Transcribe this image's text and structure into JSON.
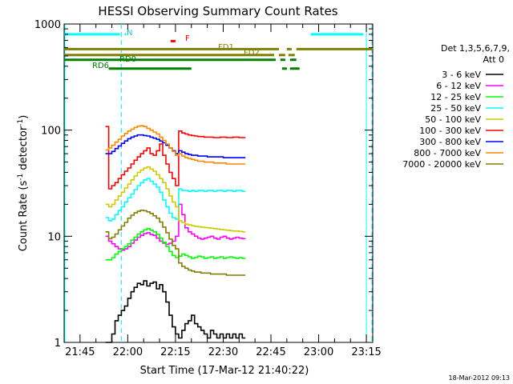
{
  "chart_data": {
    "type": "line",
    "title": "HESSI Observing Summary Count Rates",
    "xlabel": "Start Time (17-Mar-12 21:40:22)",
    "ylabel": "Count Rate (s-1 detector-1)",
    "ylabel_parts": {
      "a": "Count Rate (s",
      "sup1": "-1",
      "b": " detector",
      "sup2": "-1",
      "c": ")"
    },
    "yscale": "log",
    "ylim": [
      1,
      1000
    ],
    "xlim_min": [
      0,
      97
    ],
    "x_tick_values_min": [
      5,
      20,
      35,
      50,
      65,
      80,
      95
    ],
    "x_tick_labels": [
      "21:45",
      "22:00",
      "22:15",
      "22:30",
      "22:45",
      "23:00",
      "23:15"
    ],
    "y_tick_values": [
      1,
      10,
      100,
      1000
    ],
    "y_tick_labels": [
      "1",
      "10",
      "100",
      "1000"
    ],
    "timestamp": "18-Mar-2012 09:13",
    "legend": {
      "header1": "Det 1,3,5,6,7,9,",
      "header2": "Att 0",
      "entries": [
        {
          "label": "3 - 6 keV",
          "color": "#000000"
        },
        {
          "label": "6 - 12 keV",
          "color": "#ff00ff"
        },
        {
          "label": "12 - 25 keV",
          "color": "#00ff00"
        },
        {
          "label": "25 - 50 keV",
          "color": "#00ffff"
        },
        {
          "label": "50 - 100 keV",
          "color": "#cccc00"
        },
        {
          "label": "100 - 300 keV",
          "color": "#ff0000"
        },
        {
          "label": "300 - 800 keV",
          "color": "#0000ff"
        },
        {
          "label": "800 - 7000 keV",
          "color": "#ff8800"
        },
        {
          "label": "7000 - 20000 keV",
          "color": "#808000"
        }
      ]
    },
    "night_boundaries_min": [
      0,
      95
    ],
    "saa_boundaries_min": [
      18,
      97
    ],
    "bar_labels": {
      "N": "N",
      "F": "F",
      "FD1": "FD1",
      "FD2": "FD2",
      "RD0": "RD0",
      "RD6": "RD6"
    },
    "status_bars": [
      {
        "name": "N",
        "color": "#00ffff",
        "y": 800,
        "segments": [
          [
            0,
            17.5
          ],
          [
            19,
            19.5
          ],
          [
            77.5,
            94
          ]
        ]
      },
      {
        "name": "F",
        "color": "#ff0000",
        "y": 690,
        "segments": [
          [
            33.5,
            35
          ]
        ]
      },
      {
        "name": "FD1",
        "color": "#808000",
        "y": 580,
        "segments": [
          [
            0,
            67.5
          ],
          [
            70,
            71.5
          ],
          [
            73,
            97
          ]
        ]
      },
      {
        "name": "FD2",
        "color": "#808000",
        "y": 510,
        "segments": [
          [
            0,
            66
          ],
          [
            67.5,
            69.5
          ],
          [
            70.5,
            72.5
          ]
        ]
      },
      {
        "name": "RD0",
        "color": "#008000",
        "y": 460,
        "segments": [
          [
            0,
            66.5
          ],
          [
            68,
            69.5
          ],
          [
            71,
            73
          ]
        ]
      },
      {
        "name": "RD6",
        "color": "#008000",
        "y": 380,
        "segments": [
          [
            14,
            40
          ],
          [
            68.5,
            70
          ],
          [
            71,
            74
          ]
        ]
      }
    ],
    "series": [
      {
        "name": "3 - 6 keV",
        "color": "#000000",
        "x": [
          13,
          14,
          15,
          16,
          17,
          18,
          19,
          20,
          21,
          22,
          23,
          24,
          25,
          26,
          27,
          28,
          29,
          30,
          31,
          32,
          33,
          34,
          35,
          36,
          37,
          38,
          39,
          40,
          41,
          42,
          43,
          44,
          45,
          46,
          47,
          48,
          49,
          50,
          51,
          52,
          53,
          54,
          55,
          56
        ],
        "y": [
          1,
          1,
          1.2,
          1.6,
          1.8,
          2.0,
          2.2,
          2.6,
          3.0,
          3.3,
          3.6,
          3.5,
          3.8,
          3.4,
          3.6,
          3.7,
          3.2,
          3.5,
          3.0,
          2.4,
          1.8,
          1.4,
          1.2,
          1.1,
          1.3,
          1.5,
          1.6,
          1.8,
          1.5,
          1.4,
          1.3,
          1.2,
          1.1,
          1.3,
          1.2,
          1.1,
          1.2,
          1.1,
          1.2,
          1.1,
          1.2,
          1.1,
          1.2,
          1.1
        ]
      },
      {
        "name": "6 - 12 keV",
        "color": "#ff00ff",
        "x": [
          13,
          14,
          15,
          16,
          17,
          18,
          19,
          20,
          21,
          22,
          23,
          24,
          25,
          26,
          27,
          28,
          29,
          30,
          31,
          32,
          33,
          34,
          35,
          36,
          37,
          38,
          39,
          40,
          41,
          42,
          43,
          44,
          45,
          46,
          47,
          48,
          49,
          50,
          51,
          52,
          53,
          54,
          55,
          56
        ],
        "y": [
          10,
          9,
          8.5,
          8.0,
          7.6,
          7.4,
          7.6,
          8.0,
          8.6,
          9.2,
          9.8,
          10.2,
          10.6,
          10.8,
          10.4,
          10.2,
          9.6,
          9.0,
          8.6,
          8.4,
          8.6,
          9,
          10,
          20,
          16,
          12,
          11,
          10.5,
          10,
          9.6,
          9.4,
          9.6,
          9.8,
          10,
          9.6,
          9.4,
          9.8,
          10,
          9.6,
          9.4,
          9.6,
          9.8,
          9.6,
          9.5
        ]
      },
      {
        "name": "12 - 25 keV",
        "color": "#00ff00",
        "x": [
          13,
          14,
          15,
          16,
          17,
          18,
          19,
          20,
          21,
          22,
          23,
          24,
          25,
          26,
          27,
          28,
          29,
          30,
          31,
          32,
          33,
          34,
          35,
          36,
          37,
          38,
          39,
          40,
          41,
          42,
          43,
          44,
          45,
          46,
          47,
          48,
          49,
          50,
          51,
          52,
          53,
          54,
          55,
          56
        ],
        "y": [
          6.0,
          6.0,
          6.3,
          6.8,
          7.2,
          7.6,
          8.0,
          8.5,
          9.2,
          9.8,
          10.5,
          11.0,
          11.5,
          11.8,
          11.4,
          11.0,
          10.4,
          9.6,
          8.8,
          8.0,
          7.2,
          6.6,
          6.3,
          6.5,
          6.8,
          6.6,
          6.4,
          6.2,
          6.3,
          6.5,
          6.4,
          6.2,
          6.3,
          6.4,
          6.2,
          6.3,
          6.4,
          6.2,
          6.3,
          6.4,
          6.3,
          6.2,
          6.3,
          6.2
        ]
      },
      {
        "name": "25 - 50 keV",
        "color": "#00ffff",
        "x": [
          13,
          14,
          15,
          16,
          17,
          18,
          19,
          20,
          21,
          22,
          23,
          24,
          25,
          26,
          27,
          28,
          29,
          30,
          31,
          32,
          33,
          34,
          35,
          36,
          37,
          38,
          39,
          40,
          41,
          42,
          43,
          44,
          45,
          46,
          47,
          48,
          49,
          50,
          51,
          52,
          53,
          54,
          55,
          56
        ],
        "y": [
          15,
          14,
          14.5,
          16,
          17.5,
          19,
          21,
          23,
          25,
          27.5,
          30,
          32,
          34,
          35,
          33,
          31,
          29,
          26,
          22,
          19,
          16.5,
          15,
          14.5,
          28,
          27,
          27,
          26.5,
          27,
          26.5,
          27,
          27,
          26.5,
          27,
          27,
          26.5,
          27,
          27,
          26.5,
          27,
          27,
          26.5,
          27,
          27,
          26.5
        ]
      },
      {
        "name": "50 - 100 keV",
        "color": "#cccc00",
        "x": [
          13,
          14,
          15,
          16,
          17,
          18,
          19,
          20,
          21,
          22,
          23,
          24,
          25,
          26,
          27,
          28,
          29,
          30,
          31,
          32,
          33,
          34,
          35,
          36,
          37,
          38,
          39,
          40,
          41,
          42,
          43,
          44,
          45,
          46,
          47,
          48,
          49,
          50,
          51,
          52,
          53,
          54,
          55,
          56
        ],
        "y": [
          20,
          19,
          20,
          22,
          24,
          26,
          28.5,
          31,
          34,
          37,
          40,
          42,
          44,
          45,
          43,
          41,
          38,
          35,
          32,
          28,
          24,
          21,
          19,
          14,
          13.5,
          13,
          12.8,
          12.6,
          12.4,
          12.3,
          12.2,
          12.1,
          12.0,
          11.9,
          11.8,
          11.7,
          11.6,
          11.5,
          11.4,
          11.3,
          11.2,
          11.2,
          11.1,
          11.0
        ]
      },
      {
        "name": "100 - 300 keV",
        "color": "#ff0000",
        "x": [
          13,
          14,
          15,
          16,
          17,
          18,
          19,
          20,
          21,
          22,
          23,
          24,
          25,
          26,
          27,
          28,
          29,
          30,
          31,
          32,
          33,
          34,
          35,
          36,
          37,
          38,
          39,
          40,
          41,
          42,
          43,
          44,
          45,
          46,
          47,
          48,
          49,
          50,
          51,
          52,
          53,
          54,
          55,
          56
        ],
        "y": [
          108,
          28,
          30,
          32,
          35,
          38,
          41,
          44,
          48,
          52,
          56,
          60,
          64,
          68,
          60,
          58,
          64,
          74,
          58,
          48,
          40,
          35,
          30,
          98,
          94,
          92,
          90,
          89,
          88,
          87,
          87,
          86,
          86,
          86,
          85,
          85,
          86,
          86,
          85,
          85,
          86,
          86,
          85,
          85
        ]
      },
      {
        "name": "300 - 800 keV",
        "color": "#0000ff",
        "x": [
          13,
          14,
          15,
          16,
          17,
          18,
          19,
          20,
          21,
          22,
          23,
          24,
          25,
          26,
          27,
          28,
          29,
          30,
          31,
          32,
          33,
          34,
          35,
          36,
          37,
          38,
          39,
          40,
          41,
          42,
          43,
          44,
          45,
          46,
          47,
          48,
          49,
          50,
          51,
          52,
          53,
          54,
          55,
          56
        ],
        "y": [
          60,
          60,
          63,
          67,
          71,
          75,
          79,
          83,
          86,
          88,
          90,
          90,
          89,
          88,
          86,
          84,
          82,
          79,
          76,
          72,
          68,
          64,
          60,
          64,
          62,
          60,
          59,
          58,
          58,
          57,
          57,
          57,
          56,
          56,
          56,
          56,
          56,
          55,
          55,
          55,
          55,
          55,
          55,
          55
        ]
      },
      {
        "name": "800 - 7000 keV",
        "color": "#ff8800",
        "x": [
          13,
          14,
          15,
          16,
          17,
          18,
          19,
          20,
          21,
          22,
          23,
          24,
          25,
          26,
          27,
          28,
          29,
          30,
          31,
          32,
          33,
          34,
          35,
          36,
          37,
          38,
          39,
          40,
          41,
          42,
          43,
          44,
          45,
          46,
          47,
          48,
          49,
          50,
          51,
          52,
          53,
          54,
          55,
          56
        ],
        "y": [
          65,
          68,
          72,
          77,
          82,
          88,
          93,
          98,
          102,
          106,
          109,
          110,
          108,
          104,
          100,
          96,
          92,
          86,
          80,
          74,
          68,
          63,
          58,
          60,
          57,
          55,
          54,
          53,
          52,
          51,
          51,
          50,
          50,
          50,
          49,
          49,
          49,
          49,
          48,
          48,
          48,
          48,
          48,
          48
        ]
      },
      {
        "name": "7000 - 20000 keV",
        "color": "#808000",
        "x": [
          13,
          14,
          15,
          16,
          17,
          18,
          19,
          20,
          21,
          22,
          23,
          24,
          25,
          26,
          27,
          28,
          29,
          30,
          31,
          32,
          33,
          34,
          35,
          36,
          37,
          38,
          39,
          40,
          41,
          42,
          43,
          44,
          45,
          46,
          47,
          48,
          49,
          50,
          51,
          52,
          53,
          54,
          55,
          56
        ],
        "y": [
          11,
          9.5,
          9.8,
          10.5,
          11.5,
          12.5,
          13.5,
          14.8,
          15.8,
          16.6,
          17.2,
          17.6,
          17.4,
          17.0,
          16.4,
          15.6,
          14.8,
          13.6,
          12.2,
          10.8,
          9.4,
          8.2,
          7.6,
          5.6,
          5.2,
          5.0,
          4.8,
          4.7,
          4.6,
          4.6,
          4.5,
          4.5,
          4.5,
          4.4,
          4.4,
          4.4,
          4.4,
          4.4,
          4.3,
          4.3,
          4.3,
          4.3,
          4.3,
          4.3
        ]
      }
    ]
  }
}
